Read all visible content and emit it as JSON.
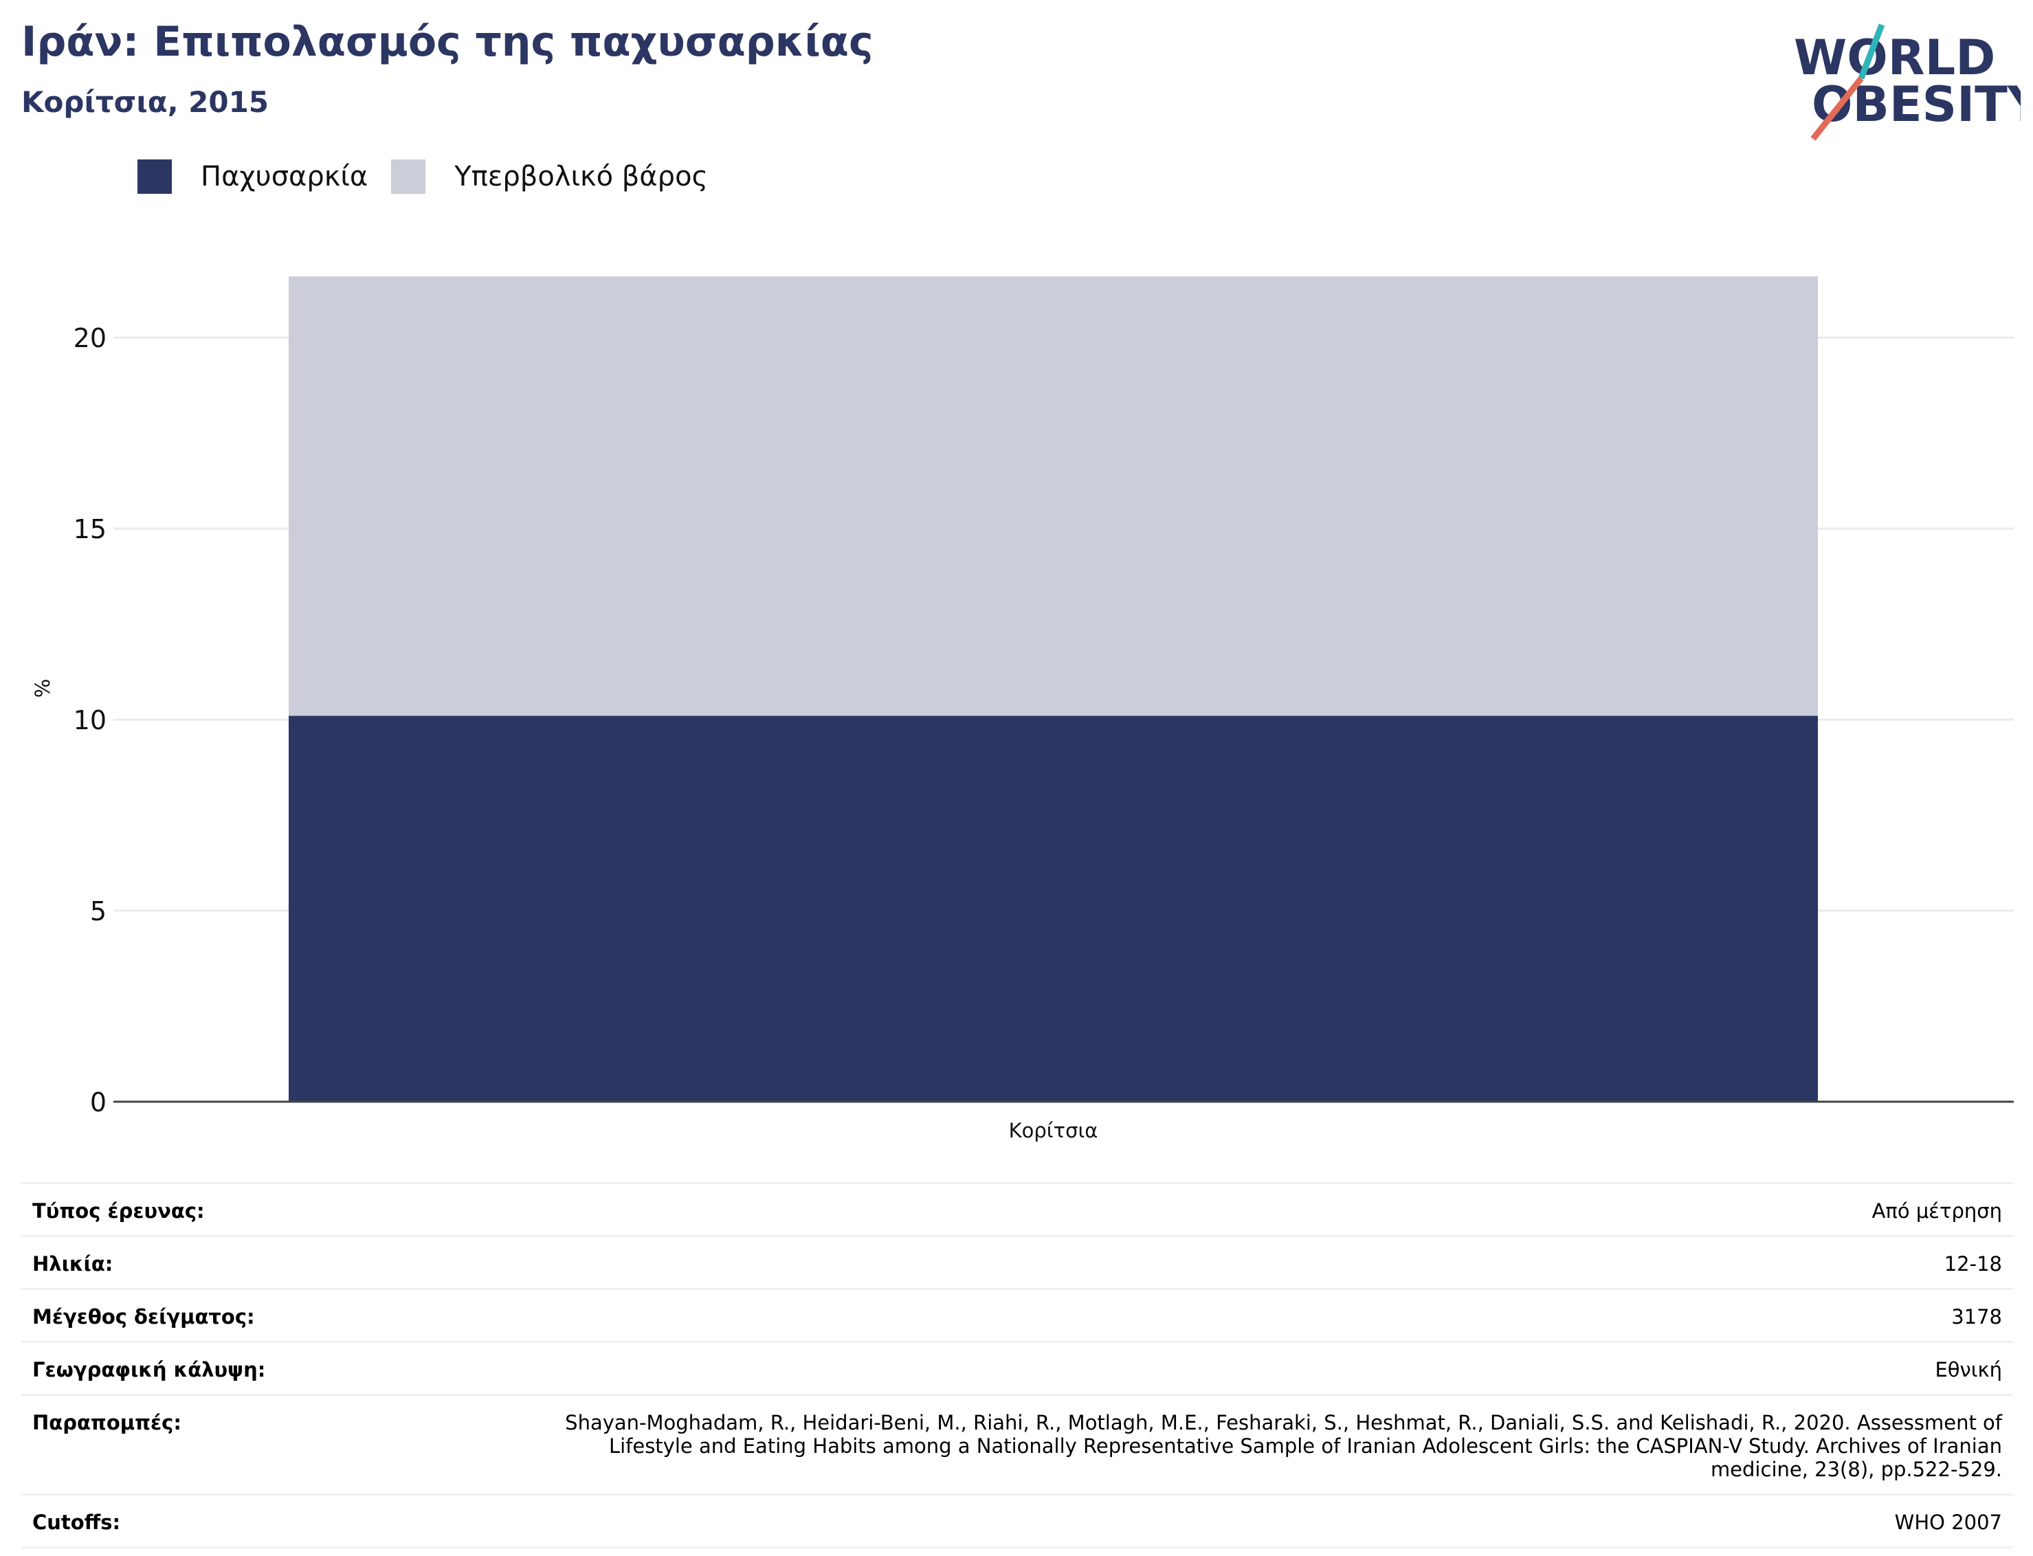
{
  "header": {
    "title": "Ιράν: Επιπολασμός της παχυσαρκίας",
    "subtitle": "Κορίτσια, 2015",
    "logo_line1": "WORLD",
    "logo_line2": "OBESITY"
  },
  "colors": {
    "obesity": "#2b3663",
    "overweight": "#cbcdd9",
    "logo_teal": "#2fb4b8",
    "logo_coral": "#e36a57"
  },
  "legend": [
    {
      "label": "Παχυσαρκία",
      "color": "#2b3663"
    },
    {
      "label": "Υπερβολικό βάρος",
      "color": "#cbcdd9"
    }
  ],
  "chart_data": {
    "type": "bar",
    "stacked": true,
    "categories": [
      "Κορίτσια"
    ],
    "series": [
      {
        "name": "Παχυσαρκία",
        "values": [
          10.1
        ]
      },
      {
        "name": "Υπερβολικό βάρος",
        "values": [
          11.5
        ]
      }
    ],
    "ylabel": "%",
    "ylim": [
      0,
      22
    ],
    "yticks": [
      0,
      5,
      10,
      15,
      20
    ],
    "grid": true,
    "legend_position": "top-left"
  },
  "details": [
    {
      "label": "Τύπος έρευνας:",
      "value": "Από μέτρηση"
    },
    {
      "label": "Ηλικία:",
      "value": "12-18"
    },
    {
      "label": "Μέγεθος δείγματος:",
      "value": "3178"
    },
    {
      "label": "Γεωγραφική κάλυψη:",
      "value": "Εθνική"
    },
    {
      "label": "Παραπομπές:",
      "value": "Shayan-Moghadam, R., Heidari-Beni, M., Riahi, R., Motlagh, M.E., Fesharaki, S., Heshmat, R., Daniali, S.S. and Kelishadi, R., 2020. Assessment of Lifestyle and Eating Habits among a Nationally Representative Sample of Iranian Adolescent Girls: the CASPIAN-V Study. Archives of Iranian medicine, 23(8), pp.522-529."
    },
    {
      "label": "Cutoffs:",
      "value": "WHO 2007"
    }
  ]
}
